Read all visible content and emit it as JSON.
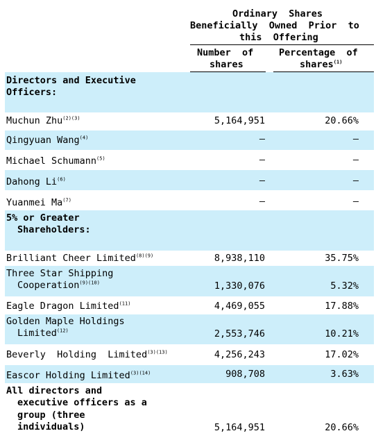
{
  "header": {
    "group_line1": "Ordinary  Shares",
    "group_line2": "Beneficially  Owned  Prior  to",
    "group_line3": "this  Offering",
    "col_number_line1": "Number  of",
    "col_number_line2": "shares",
    "col_percent_line1": "Percentage  of",
    "col_percent_line2": "shares",
    "col_percent_note": "(1)"
  },
  "sections": [
    {
      "title_line1": "Directors and Executive",
      "title_line2": "Officers:",
      "rows": [
        {
          "name": "Muchun Zhu",
          "notes": "(2)(3)",
          "number": "5,164,951",
          "percent": "20.66%"
        },
        {
          "name": "Qingyuan Wang",
          "notes": "(4)",
          "number": "—",
          "percent": "—"
        },
        {
          "name": "Michael Schumann",
          "notes": "(5)",
          "number": "—",
          "percent": "—"
        },
        {
          "name": "Dahong Li",
          "notes": "(6)",
          "number": "—",
          "percent": "—"
        },
        {
          "name": "Yuanmei Ma",
          "notes": "(7)",
          "number": "—",
          "percent": "—"
        }
      ]
    },
    {
      "title_line1": "5% or Greater",
      "title_line2": "Shareholders:",
      "rows": [
        {
          "name": "Brilliant Cheer Limited",
          "notes": "(8)(9)",
          "number": "8,938,110",
          "percent": "35.75%"
        },
        {
          "name": "Three Star Shipping",
          "name2": "Cooperation",
          "notes": "(9)(10)",
          "number": "1,330,076",
          "percent": "5.32%"
        },
        {
          "name": "Eagle Dragon Limited",
          "notes": "(11)",
          "number": "4,469,055",
          "percent": "17.88%"
        },
        {
          "name": "Golden Maple Holdings",
          "name2": "Limited",
          "notes": "(12)",
          "number": "2,553,746",
          "percent": "10.21%"
        },
        {
          "name": "Beverly  Holding  Limited",
          "notes": "(3)(13)",
          "number": "4,256,243",
          "percent": "17.02%"
        },
        {
          "name": "Eascor Holding Limited",
          "notes": "(3)(14)",
          "number": "908,708",
          "percent": "3.63%"
        }
      ]
    }
  ],
  "total": {
    "line1": "All directors and",
    "line2": "executive officers as a",
    "line3": "group (three",
    "line4": "individuals)",
    "number": "5,164,951",
    "percent": "20.66%"
  }
}
